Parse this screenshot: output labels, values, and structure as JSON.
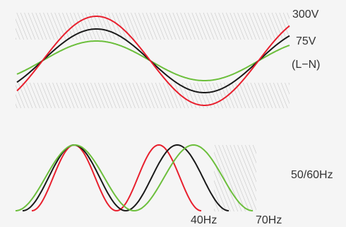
{
  "voltage": {
    "label_max": "300V",
    "label_min": "75V",
    "label_mode": "(L−N)"
  },
  "frequency": {
    "label_range": "50/60Hz",
    "label_low": "40Hz",
    "label_high": "70Hz"
  },
  "colors": {
    "red": "#e8202e",
    "black": "#1a1a1a",
    "green": "#6cbf3c",
    "hatch": "#c2c2c2",
    "background": "#f5f5f5"
  }
}
